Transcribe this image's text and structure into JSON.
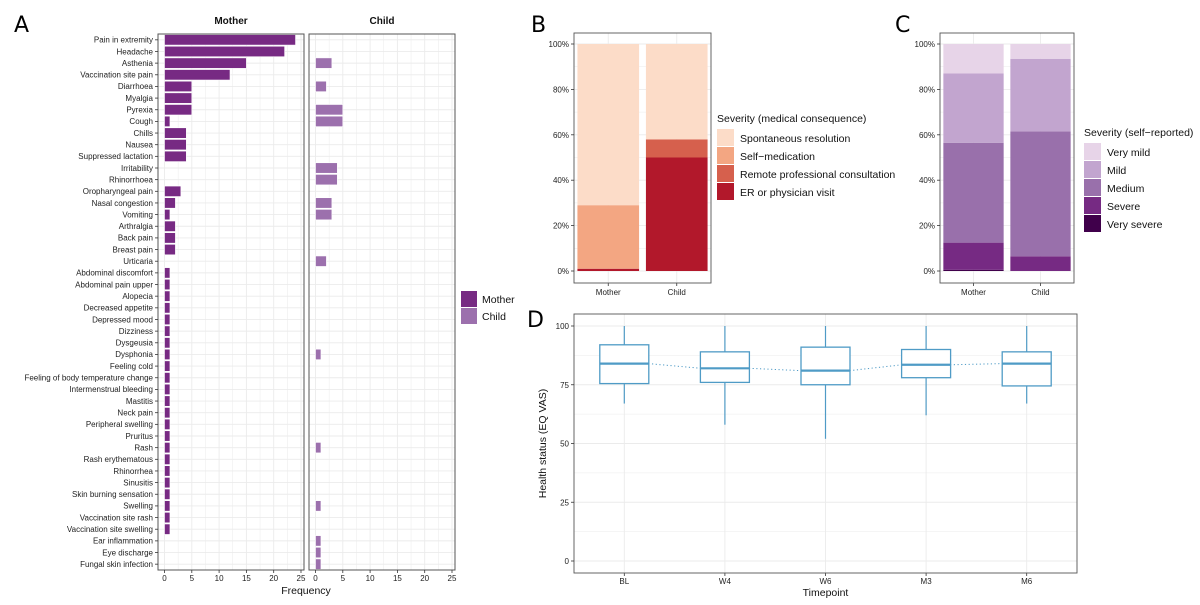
{
  "panel_letters": {
    "a": "A",
    "b": "B",
    "c": "C",
    "d": "D"
  },
  "chart_data": [
    {
      "id": "A",
      "type": "bar",
      "orientation": "horizontal",
      "facets": [
        "Mother",
        "Child"
      ],
      "xlabel": "Frequency",
      "xlim": [
        0,
        25
      ],
      "xticks": [
        "0",
        "5",
        "10",
        "15",
        "20",
        "25"
      ],
      "grid": true,
      "legend": {
        "position": "right",
        "entries": [
          "Mother",
          "Child"
        ]
      },
      "colors": {
        "Mother": "#772a83",
        "Child": "#9c70ad"
      },
      "categories": [
        "Pain in extremity",
        "Headache",
        "Asthenia",
        "Vaccination site pain",
        "Diarrhoea",
        "Myalgia",
        "Pyrexia",
        "Cough",
        "Chills",
        "Nausea",
        "Suppressed lactation",
        "Irritability",
        "Rhinorrhoea",
        "Oropharyngeal pain",
        "Nasal congestion",
        "Vomiting",
        "Arthralgia",
        "Back pain",
        "Breast pain",
        "Urticaria",
        "Abdominal discomfort",
        "Abdominal pain upper",
        "Alopecia",
        "Decreased appetite",
        "Depressed mood",
        "Dizziness",
        "Dysgeusia",
        "Dysphonia",
        "Feeling cold",
        "Feeling of body temperature change",
        "Intermenstrual bleeding",
        "Mastitis",
        "Neck pain",
        "Peripheral swelling",
        "Pruritus",
        "Rash",
        "Rash erythematous",
        "Rhinorrhea",
        "Sinusitis",
        "Skin burning sensation",
        "Swelling",
        "Vaccination site rash",
        "Vaccination site swelling",
        "Ear inflammation",
        "Eye discharge",
        "Fungal skin infection"
      ],
      "series": [
        {
          "name": "Mother",
          "values": [
            24,
            22,
            15,
            12,
            5,
            5,
            5,
            1,
            4,
            4,
            4,
            0,
            0,
            3,
            2,
            1,
            2,
            2,
            2,
            0,
            1,
            1,
            1,
            1,
            1,
            1,
            1,
            1,
            1,
            1,
            1,
            1,
            1,
            1,
            1,
            1,
            1,
            1,
            1,
            1,
            1,
            1,
            1,
            0,
            0,
            0
          ]
        },
        {
          "name": "Child",
          "values": [
            0,
            0,
            3,
            0,
            2,
            0,
            5,
            5,
            0,
            0,
            0,
            4,
            4,
            0,
            3,
            3,
            0,
            0,
            0,
            2,
            0,
            0,
            0,
            0,
            0,
            0,
            0,
            1,
            0,
            0,
            0,
            0,
            0,
            0,
            0,
            1,
            0,
            0,
            0,
            0,
            1,
            0,
            0,
            1,
            1,
            1
          ]
        }
      ]
    },
    {
      "id": "B",
      "type": "bar",
      "stacked": true,
      "categories": [
        "Mother",
        "Child"
      ],
      "ylim": [
        0,
        100
      ],
      "yticks": [
        "0%",
        "20%",
        "40%",
        "60%",
        "80%",
        "100%"
      ],
      "legend": {
        "title": "Severity (medical consequence)",
        "position": "right"
      },
      "series": [
        {
          "name": "Spontaneous resolution",
          "color": "#fcdcc8",
          "values": [
            71,
            42
          ]
        },
        {
          "name": "Self−medication",
          "color": "#f3a682",
          "values": [
            28,
            0
          ]
        },
        {
          "name": "Remote professional consultation",
          "color": "#d6604d",
          "values": [
            0,
            8
          ]
        },
        {
          "name": "ER or physician visit",
          "color": "#b2182b",
          "values": [
            1,
            50
          ]
        }
      ]
    },
    {
      "id": "C",
      "type": "bar",
      "stacked": true,
      "categories": [
        "Mother",
        "Child"
      ],
      "ylim": [
        0,
        100
      ],
      "yticks": [
        "0%",
        "20%",
        "40%",
        "60%",
        "80%",
        "100%"
      ],
      "legend": {
        "title": "Severity (self−reported)",
        "position": "right"
      },
      "series": [
        {
          "name": "Very mild",
          "color": "#e7d4e8",
          "values": [
            13,
            6.5
          ]
        },
        {
          "name": "Mild",
          "color": "#c2a5cf",
          "values": [
            30.5,
            32
          ]
        },
        {
          "name": "Medium",
          "color": "#9970ab",
          "values": [
            44,
            55
          ]
        },
        {
          "name": "Severe",
          "color": "#762a83",
          "values": [
            12,
            6.5
          ]
        },
        {
          "name": "Very severe",
          "color": "#40004b",
          "values": [
            0.5,
            0
          ]
        }
      ]
    },
    {
      "id": "D",
      "type": "box",
      "xlabel": "Timepoint",
      "ylabel": "Health status (EQ VAS)",
      "ylim": [
        0,
        100
      ],
      "yticks": [
        "0",
        "25",
        "50",
        "75",
        "100"
      ],
      "categories": [
        "BL",
        "W4",
        "W6",
        "M3",
        "M6"
      ],
      "color": "#4f9bc6",
      "boxes": [
        {
          "label": "BL",
          "min": 67,
          "q1": 75.5,
          "median": 84,
          "q3": 92,
          "max": 100
        },
        {
          "label": "W4",
          "min": 58,
          "q1": 76,
          "median": 82,
          "q3": 89,
          "max": 100
        },
        {
          "label": "W6",
          "min": 52,
          "q1": 75,
          "median": 81,
          "q3": 91,
          "max": 100
        },
        {
          "label": "M3",
          "min": 62,
          "q1": 78,
          "median": 83.5,
          "q3": 90,
          "max": 100
        },
        {
          "label": "M6",
          "min": 67,
          "q1": 74.5,
          "median": 84,
          "q3": 89,
          "max": 100
        }
      ],
      "median_line": "dotted"
    }
  ]
}
